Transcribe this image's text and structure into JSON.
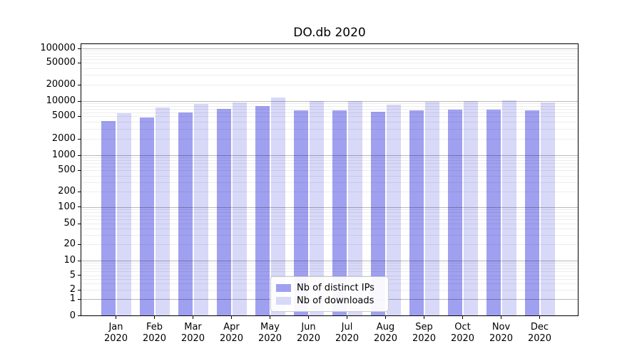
{
  "chart_data": {
    "type": "bar",
    "title": "DO.db 2020",
    "xlabel": "",
    "ylabel": "",
    "yscale": "symlog",
    "ylim": [
      0,
      130000
    ],
    "grid": true,
    "legend_position": "lower center",
    "categories": [
      "Jan",
      "Feb",
      "Mar",
      "Apr",
      "May",
      "Jun",
      "Jul",
      "Aug",
      "Sep",
      "Oct",
      "Nov",
      "Dec"
    ],
    "category_year": "2020",
    "yticks": [
      0,
      1,
      2,
      5,
      10,
      20,
      50,
      100,
      200,
      500,
      1000,
      2000,
      5000,
      10000,
      20000,
      50000,
      100000
    ],
    "series": [
      {
        "name": "Nb of distinct IPs",
        "color": "#a0a0f0",
        "values": [
          4100,
          4800,
          6000,
          6900,
          8000,
          6600,
          6500,
          6100,
          6550,
          6700,
          6700,
          6600
        ]
      },
      {
        "name": "Nb of downloads",
        "color": "#d8d8f8",
        "values": [
          5800,
          7500,
          8900,
          9400,
          11500,
          9900,
          10100,
          8500,
          9700,
          9900,
          10300,
          9300
        ]
      }
    ]
  }
}
